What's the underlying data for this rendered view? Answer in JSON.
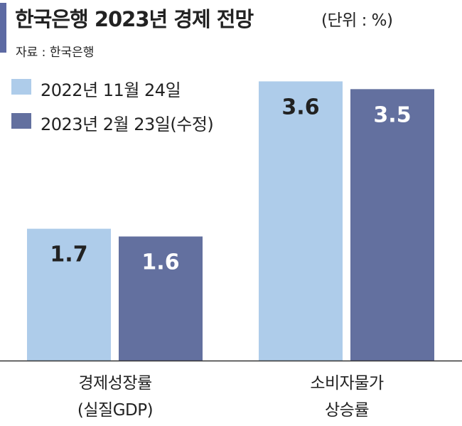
{
  "title": "한국은행 2023년 경제 전망",
  "unit": "(단위 : %)",
  "source": "자료 : 한국은행",
  "colors": {
    "accent": "#5d6aa3",
    "series1": "#aeccea",
    "series2": "#63709f"
  },
  "chart_data": {
    "type": "bar",
    "categories": [
      {
        "line1": "경제성장률",
        "line2": "(실질GDP)"
      },
      {
        "line1": "소비자물가",
        "line2": "상승률"
      }
    ],
    "series": [
      {
        "name": "2022년 11월 24일",
        "values": [
          1.7,
          3.6
        ],
        "color": "#aeccea"
      },
      {
        "name": "2023년 2월 23일(수정)",
        "values": [
          1.6,
          3.5
        ],
        "color": "#63709f"
      }
    ],
    "ylim": [
      0,
      4.2
    ],
    "legend": "top-left",
    "grid": false
  }
}
